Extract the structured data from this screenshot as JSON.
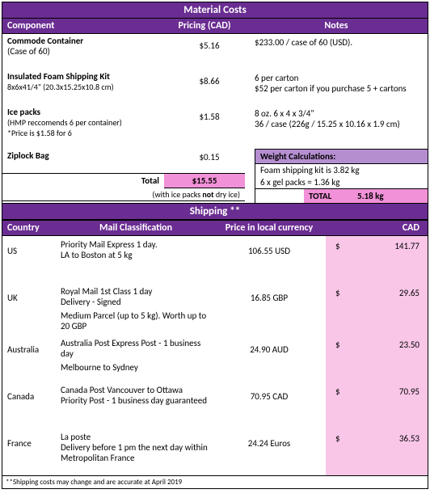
{
  "material": {
    "title": "Material Costs",
    "cols": {
      "component": "Component",
      "pricing": "Pricing (CAD)",
      "notes": "Notes"
    },
    "items": [
      {
        "name": "Commode Container",
        "sub": "(Case of 60)",
        "price": "$5.16",
        "notes1": "$233.00 / case of 60 (USD).",
        "notes2": ""
      },
      {
        "name": "Insulated Foam Shipping Kit",
        "sub": "8x6x41/4\" (20.3x15.25x10.8 cm)",
        "price": "$8.66",
        "notes1": "6 per carton",
        "notes2": "$52 per carton if you purchase 5 + cartons"
      },
      {
        "name": "Ice packs",
        "sub": "(HMP reccomends 6 per container)",
        "sub2": "*Price is $1.58 for 6",
        "price": "$1.58",
        "notes1": "8 oz. 6 x 4 x 3/4\"",
        "notes2": "36 / case (226g / 15.25 x 10.16 x 1.9 cm)"
      },
      {
        "name": "Ziplock Bag",
        "sub": "",
        "price": "$0.15",
        "notes1": "",
        "notes2": ""
      }
    ],
    "total_label": "Total",
    "total_value": "$15.55",
    "total_note_pre": "(with ice packs ",
    "total_note_bold": "not",
    "total_note_post": " dry ice)",
    "weight": {
      "title": "Weight Calculations:",
      "l1": "Foam shipping kit is 3.82 kg",
      "l2": "6 x gel packs = 1.36 kg",
      "total_label": "TOTAL",
      "total_value": "5.18 kg"
    }
  },
  "shipping": {
    "title": "Shipping **",
    "cols": {
      "country": "Country",
      "mail": "Mail Classification",
      "local": "Price in local currency",
      "cad": "CAD"
    },
    "rows": [
      {
        "country": "US",
        "mail1": "Priority Mail Express 1 day.",
        "mail2": "LA to Boston at 5 kg",
        "mail3": "",
        "local": "106.55 USD",
        "cad": "141.77"
      },
      {
        "country": "UK",
        "mail1": "Royal Mail 1st Class 1 day",
        "mail2": "Delivery - Signed",
        "mail3": "Medium Parcel (up to 5 kg). Worth up to 20 GBP",
        "local": "16.85 GBP",
        "cad": "29.65"
      },
      {
        "country": "Australia",
        "mail1": "Australia Post Express Post - 1 business day",
        "mail2": "",
        "mail3": "Melbourne to Sydney",
        "local": "24.90 AUD",
        "cad": "23.50"
      },
      {
        "country": "Canada",
        "mail1": "Canada Post Vancouver to Ottawa",
        "mail2": "Priority Post - 1 business day guaranteed",
        "mail3": "",
        "local": "70.95 CAD",
        "cad": "70.95"
      },
      {
        "country": "France",
        "mail1": "La poste",
        "mail2": "Delivery before 1 pm the next day within Metropolitan France",
        "mail3": "",
        "local": "24.24 Euros",
        "cad": "36.53"
      }
    ],
    "footnote": "**Shipping costs may change and are accurate at April 2019"
  },
  "dollar": "$"
}
